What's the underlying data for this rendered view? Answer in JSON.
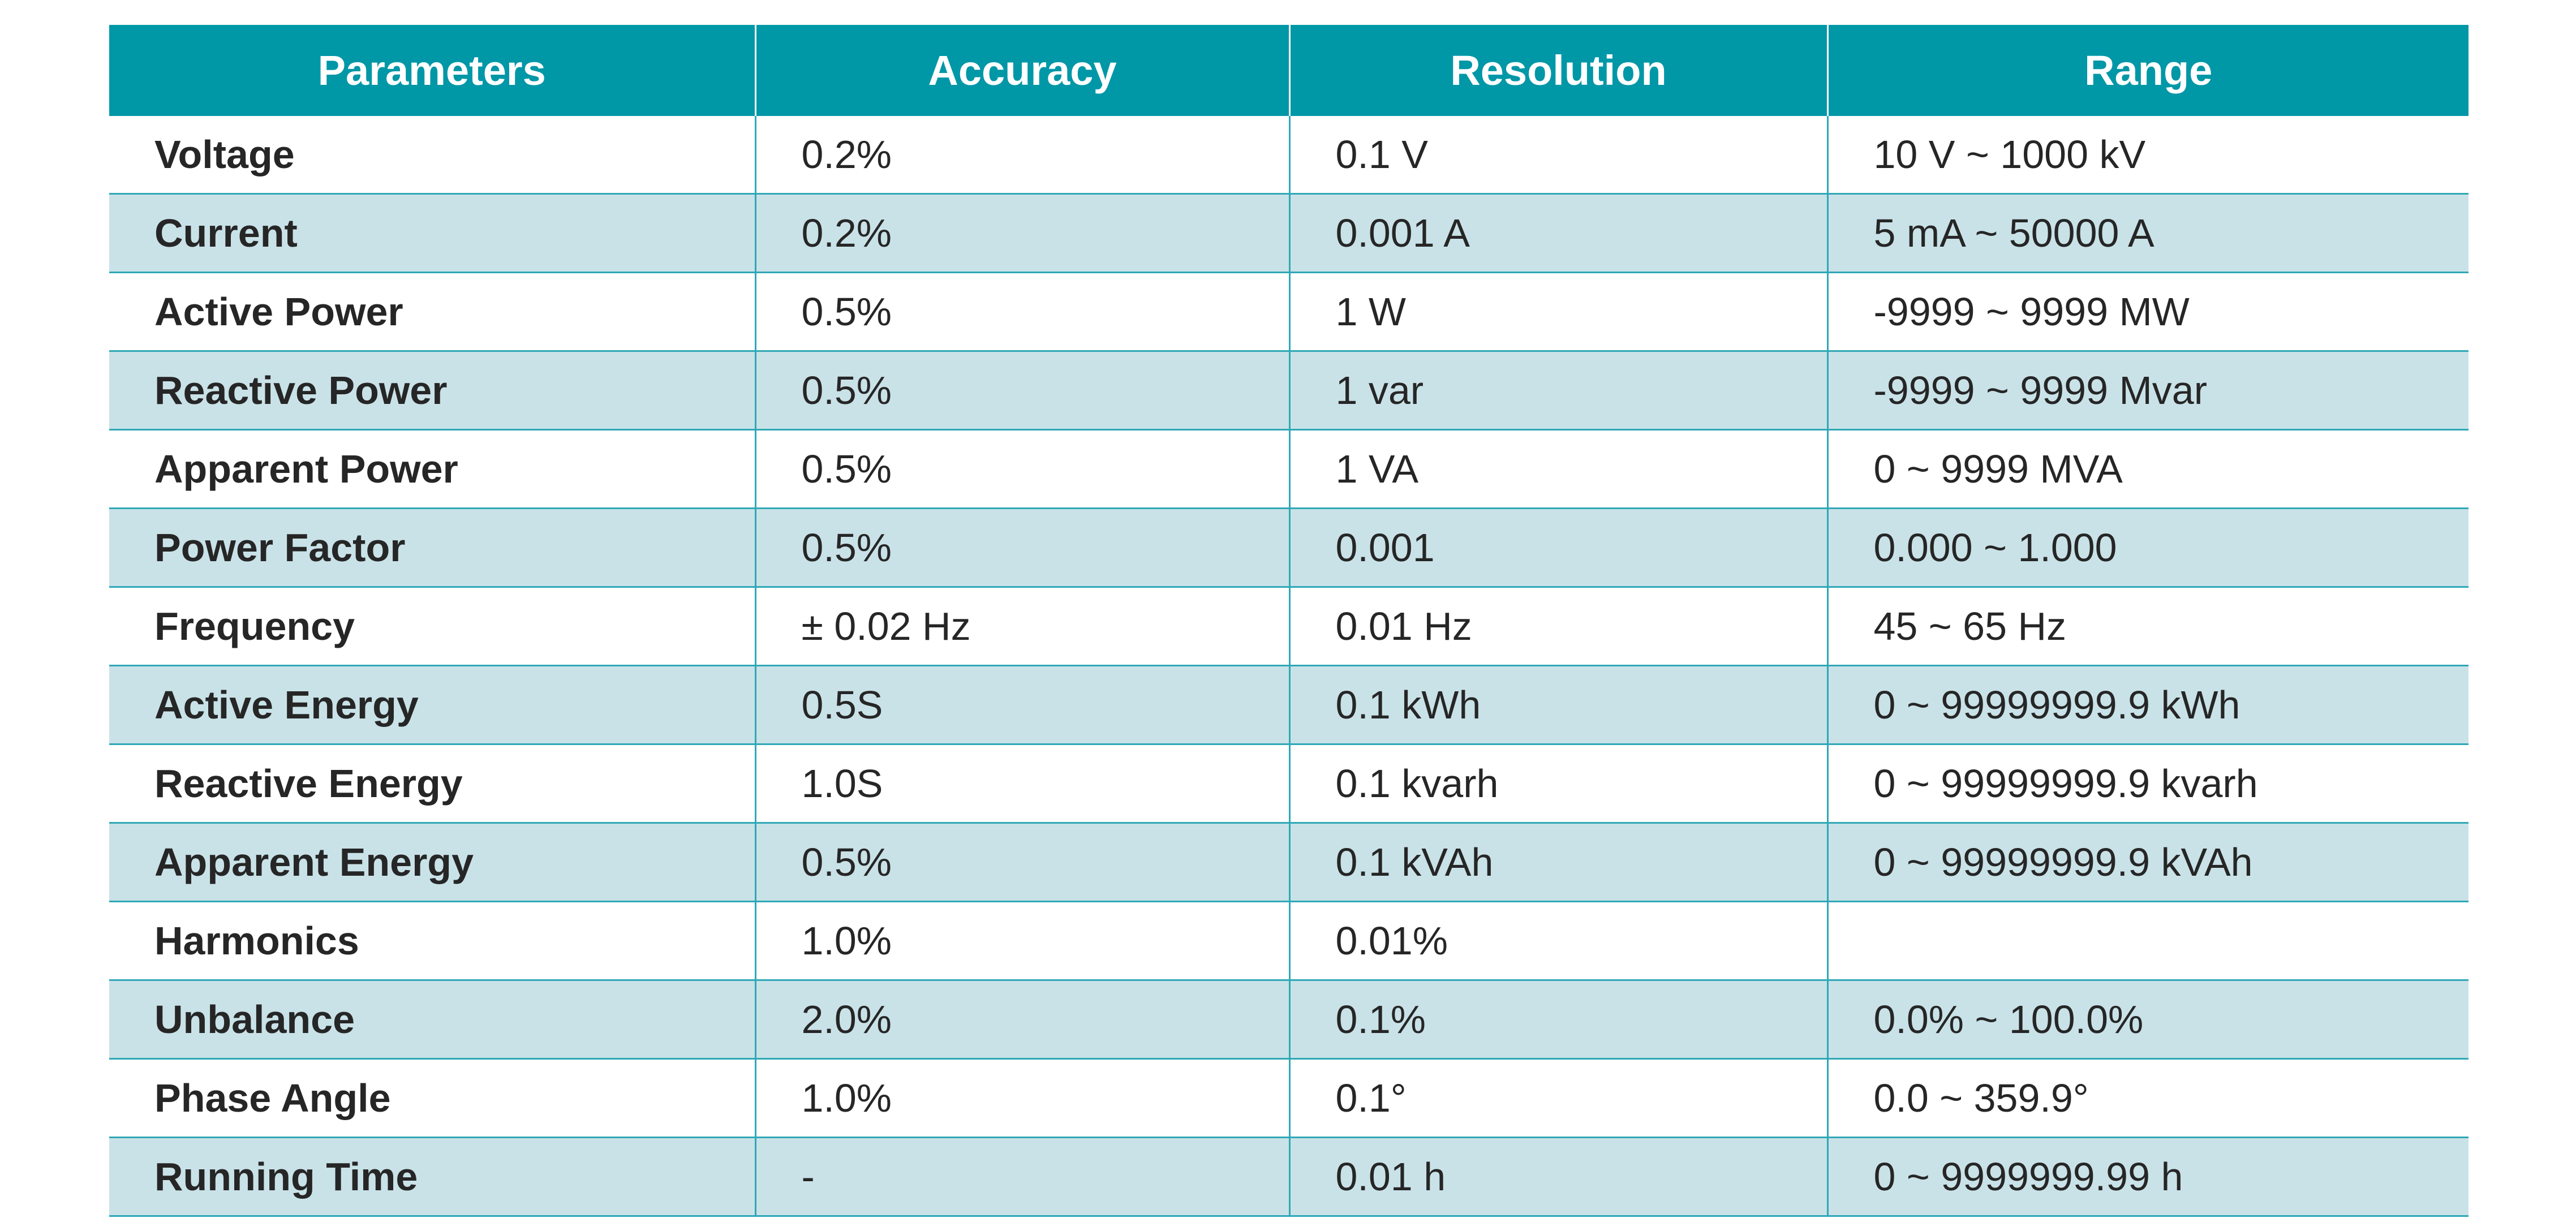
{
  "colors": {
    "header_bg": "#0097a7",
    "header_text": "#ffffff",
    "row_alt_bg": "#c9e2e8",
    "row_bg": "#ffffff",
    "grid_line": "#2fa8b6"
  },
  "table": {
    "headers": [
      "Parameters",
      "Accuracy",
      "Resolution",
      "Range"
    ],
    "rows": [
      [
        "Voltage",
        "0.2%",
        "0.1 V",
        "10 V ~ 1000 kV"
      ],
      [
        "Current",
        "0.2%",
        "0.001 A",
        "5 mA ~ 50000 A"
      ],
      [
        "Active Power",
        "0.5%",
        "1 W",
        "-9999 ~ 9999 MW"
      ],
      [
        "Reactive Power",
        "0.5%",
        "1 var",
        "-9999 ~ 9999 Mvar"
      ],
      [
        "Apparent Power",
        "0.5%",
        "1 VA",
        "0 ~ 9999 MVA"
      ],
      [
        "Power Factor",
        "0.5%",
        "0.001",
        "0.000 ~ 1.000"
      ],
      [
        "Frequency",
        "± 0.02 Hz",
        "0.01 Hz",
        "45 ~ 65 Hz"
      ],
      [
        "Active Energy",
        "0.5S",
        "0.1 kWh",
        "0 ~ 99999999.9 kWh"
      ],
      [
        "Reactive Energy",
        "1.0S",
        "0.1 kvarh",
        "0 ~ 99999999.9 kvarh"
      ],
      [
        "Apparent Energy",
        "0.5%",
        "0.1 kVAh",
        "0 ~ 99999999.9 kVAh"
      ],
      [
        "Harmonics",
        "1.0%",
        "0.01%",
        ""
      ],
      [
        "Unbalance",
        "2.0%",
        "0.1%",
        "0.0% ~ 100.0%"
      ],
      [
        "Phase Angle",
        "1.0%",
        "0.1°",
        "0.0 ~ 359.9°"
      ],
      [
        "Running Time",
        "-",
        "0.01 h",
        "0 ~ 9999999.99 h"
      ]
    ]
  }
}
